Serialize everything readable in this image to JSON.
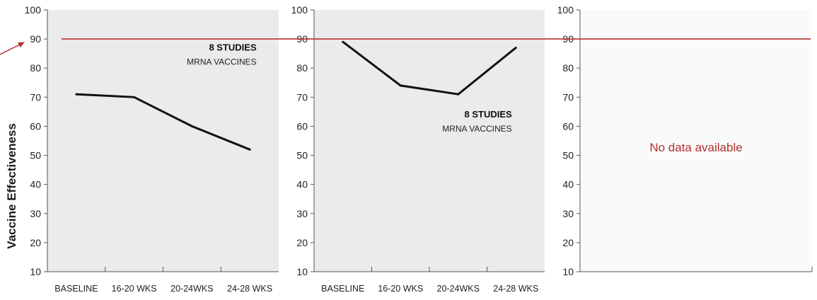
{
  "y_axis_title": "Vaccine Effectiveness",
  "reference_line_value": 90,
  "colors": {
    "panel_bg": "#ebebeb",
    "panel_bg_empty": "#fafafa",
    "line": "#111111",
    "reference": "#b3322e",
    "axis": "#555555",
    "no_data_text": "#b3322e"
  },
  "chart_data": [
    {
      "type": "line",
      "categories": [
        "BASELINE",
        "16-20 WKS",
        "20-24WKS",
        "24-28 WKS"
      ],
      "series": [
        {
          "values": [
            71,
            70,
            60,
            52
          ]
        }
      ],
      "ylim": [
        10,
        100
      ],
      "yticks": [
        10,
        20,
        30,
        40,
        50,
        60,
        70,
        80,
        90,
        100
      ],
      "annotation": {
        "title": "8 STUDIES",
        "subtitle": "MRNA VACCINES",
        "anchor": "upper-right"
      }
    },
    {
      "type": "line",
      "categories": [
        "BASELINE",
        "16-20 WKS",
        "20-24WKS",
        "24-28 WKS"
      ],
      "series": [
        {
          "values": [
            89,
            74,
            71,
            87
          ]
        }
      ],
      "ylim": [
        10,
        100
      ],
      "yticks": [
        10,
        20,
        30,
        40,
        50,
        60,
        70,
        80,
        90,
        100
      ],
      "annotation": {
        "title": "8 STUDIES",
        "subtitle": "MRNA VACCINES",
        "anchor": "middle-right"
      }
    },
    {
      "type": "line",
      "categories": [],
      "series": [],
      "ylim": [
        10,
        100
      ],
      "yticks": [
        10,
        20,
        30,
        40,
        50,
        60,
        70,
        80,
        90,
        100
      ],
      "no_data_text": "No data available"
    }
  ]
}
